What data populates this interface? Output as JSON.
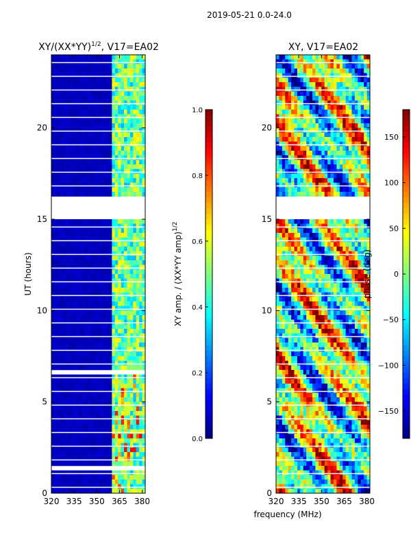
{
  "suptitle": "2019-05-21 0.0-24.0",
  "xlabel_shared": "frequency (MHz)",
  "chart_data": [
    {
      "type": "heatmap",
      "title": "XY/(XX*YY)^1/2, V17=EA02",
      "title_main": "XY/(XX*YY)",
      "title_sup": "1/2",
      "title_tail": ", V17=EA02",
      "ylabel": "UT (hours)",
      "xlim": [
        320,
        382
      ],
      "ylim": [
        0,
        24
      ],
      "xticks": [
        320,
        335,
        350,
        365,
        380
      ],
      "yticks": [
        0,
        5,
        10,
        15,
        20
      ],
      "colorbar": {
        "label": "XY amp. / (XX*YY amp)^1/2",
        "label_main": "XY amp. / (XX*YY amp)",
        "label_sup": "1/2",
        "range": [
          0.0,
          1.0
        ],
        "ticks": [
          "0.0",
          "0.2",
          "0.4",
          "0.6",
          "0.8",
          "1.0"
        ],
        "colormap": "jet"
      },
      "data_gaps_hours": [
        [
          16.3,
          15.1
        ],
        [
          6.7,
          6.5
        ],
        [
          1.5,
          1.3
        ]
      ],
      "features": "low amplitude (~0.05) below 360 MHz; higher amplitude bands 0.3-0.8 between 360 and 380 MHz"
    },
    {
      "type": "heatmap",
      "title": "XY, V17=EA02",
      "xlim": [
        320,
        382
      ],
      "ylim": [
        0,
        24
      ],
      "xticks": [
        320,
        335,
        350,
        365,
        380
      ],
      "yticks": [
        0,
        5,
        10,
        15,
        20
      ],
      "colorbar": {
        "label": "phase (deg)",
        "range": [
          -180,
          180
        ],
        "ticks": [
          "−150",
          "−100",
          "−50",
          "0",
          "50",
          "100",
          "150"
        ],
        "colormap": "jet"
      },
      "data_gaps_hours": [
        [
          16.3,
          15.1
        ]
      ],
      "features": "phase varies across full range; noisy below 10 h and above 20 h"
    }
  ],
  "colors": {
    "jet_low": "#00007f",
    "jet_high": "#7f0000",
    "frame": "#000000"
  }
}
